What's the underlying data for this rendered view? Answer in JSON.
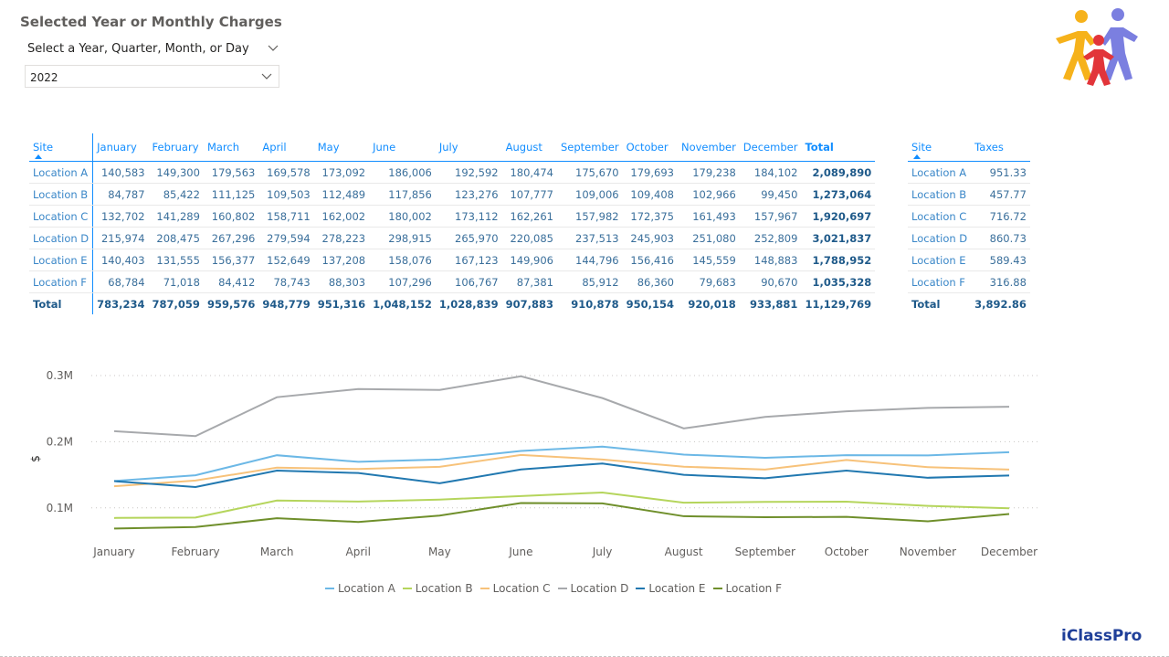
{
  "page": {
    "title": "Selected Year or Monthly Charges",
    "brand": "iClassPro"
  },
  "slicer": {
    "label": "Select a Year, Quarter, Month, or Day",
    "value": "2022"
  },
  "months": [
    "January",
    "February",
    "March",
    "April",
    "May",
    "June",
    "July",
    "August",
    "September",
    "October",
    "November",
    "December"
  ],
  "main_table": {
    "site_header": "Site",
    "total_header": "Total",
    "rows": [
      {
        "site": "Location A",
        "values": [
          "140,583",
          "149,300",
          "179,563",
          "169,578",
          "173,092",
          "186,006",
          "192,592",
          "180,474",
          "175,670",
          "179,693",
          "179,238",
          "184,102"
        ],
        "total": "2,089,890"
      },
      {
        "site": "Location B",
        "values": [
          "84,787",
          "85,422",
          "111,125",
          "109,503",
          "112,489",
          "117,856",
          "123,276",
          "107,777",
          "109,006",
          "109,408",
          "102,966",
          "99,450"
        ],
        "total": "1,273,064"
      },
      {
        "site": "Location C",
        "values": [
          "132,702",
          "141,289",
          "160,802",
          "158,711",
          "162,002",
          "180,002",
          "173,112",
          "162,261",
          "157,982",
          "172,375",
          "161,493",
          "157,967"
        ],
        "total": "1,920,697"
      },
      {
        "site": "Location D",
        "values": [
          "215,974",
          "208,475",
          "267,296",
          "279,594",
          "278,223",
          "298,915",
          "265,970",
          "220,085",
          "237,513",
          "245,903",
          "251,080",
          "252,809"
        ],
        "total": "3,021,837"
      },
      {
        "site": "Location E",
        "values": [
          "140,403",
          "131,555",
          "156,377",
          "152,649",
          "137,208",
          "158,076",
          "167,123",
          "149,906",
          "144,796",
          "156,416",
          "145,559",
          "148,883"
        ],
        "total": "1,788,952"
      },
      {
        "site": "Location F",
        "values": [
          "68,784",
          "71,018",
          "84,412",
          "78,743",
          "88,303",
          "107,296",
          "106,767",
          "87,381",
          "85,912",
          "86,360",
          "79,683",
          "90,670"
        ],
        "total": "1,035,328"
      }
    ],
    "totals_label": "Total",
    "totals": [
      "783,234",
      "787,059",
      "959,576",
      "948,779",
      "951,316",
      "1,048,152",
      "1,028,839",
      "907,883",
      "910,878",
      "950,154",
      "920,018",
      "933,881"
    ],
    "grand_total": "11,129,769"
  },
  "tax_table": {
    "site_header": "Site",
    "taxes_header": "Taxes",
    "rows": [
      {
        "site": "Location A",
        "taxes": "951.33"
      },
      {
        "site": "Location B",
        "taxes": "457.77"
      },
      {
        "site": "Location C",
        "taxes": "716.72"
      },
      {
        "site": "Location D",
        "taxes": "860.73"
      },
      {
        "site": "Location E",
        "taxes": "589.43"
      },
      {
        "site": "Location F",
        "taxes": "316.88"
      }
    ],
    "totals_label": "Total",
    "total": "3,892.86"
  },
  "chart_data": {
    "type": "line",
    "x": [
      "January",
      "February",
      "March",
      "April",
      "May",
      "June",
      "July",
      "August",
      "September",
      "October",
      "November",
      "December"
    ],
    "ylabel": "$",
    "ylim": [
      0.05,
      0.3
    ],
    "yticks": [
      {
        "value": 0.1,
        "label": "0.1M"
      },
      {
        "value": 0.2,
        "label": "0.2M"
      },
      {
        "value": 0.3,
        "label": "0.3M"
      }
    ],
    "grid": true,
    "legend_position": "bottom",
    "series": [
      {
        "name": "Location A",
        "color": "#6cb8e6",
        "values": [
          0.140583,
          0.1493,
          0.179563,
          0.169578,
          0.173092,
          0.186006,
          0.192592,
          0.180474,
          0.17567,
          0.179693,
          0.179238,
          0.184102
        ]
      },
      {
        "name": "Location B",
        "color": "#b5d55c",
        "values": [
          0.084787,
          0.085422,
          0.111125,
          0.109503,
          0.112489,
          0.117856,
          0.123276,
          0.107777,
          0.109006,
          0.109408,
          0.102966,
          0.09945
        ]
      },
      {
        "name": "Location C",
        "color": "#f7c27a",
        "values": [
          0.132702,
          0.141289,
          0.160802,
          0.158711,
          0.162002,
          0.180002,
          0.173112,
          0.162261,
          0.157982,
          0.172375,
          0.161493,
          0.157967
        ]
      },
      {
        "name": "Location D",
        "color": "#a7a9ac",
        "values": [
          0.215974,
          0.208475,
          0.267296,
          0.279594,
          0.278223,
          0.298915,
          0.26597,
          0.220085,
          0.237513,
          0.245903,
          0.25108,
          0.252809
        ]
      },
      {
        "name": "Location E",
        "color": "#2178b0",
        "values": [
          0.140403,
          0.131555,
          0.156377,
          0.152649,
          0.137208,
          0.158076,
          0.167123,
          0.149906,
          0.144796,
          0.156416,
          0.145559,
          0.148883
        ]
      },
      {
        "name": "Location F",
        "color": "#6f8f2b",
        "values": [
          0.068784,
          0.071018,
          0.084412,
          0.078743,
          0.088303,
          0.107296,
          0.106767,
          0.087381,
          0.085912,
          0.08636,
          0.079683,
          0.09067
        ]
      }
    ]
  }
}
